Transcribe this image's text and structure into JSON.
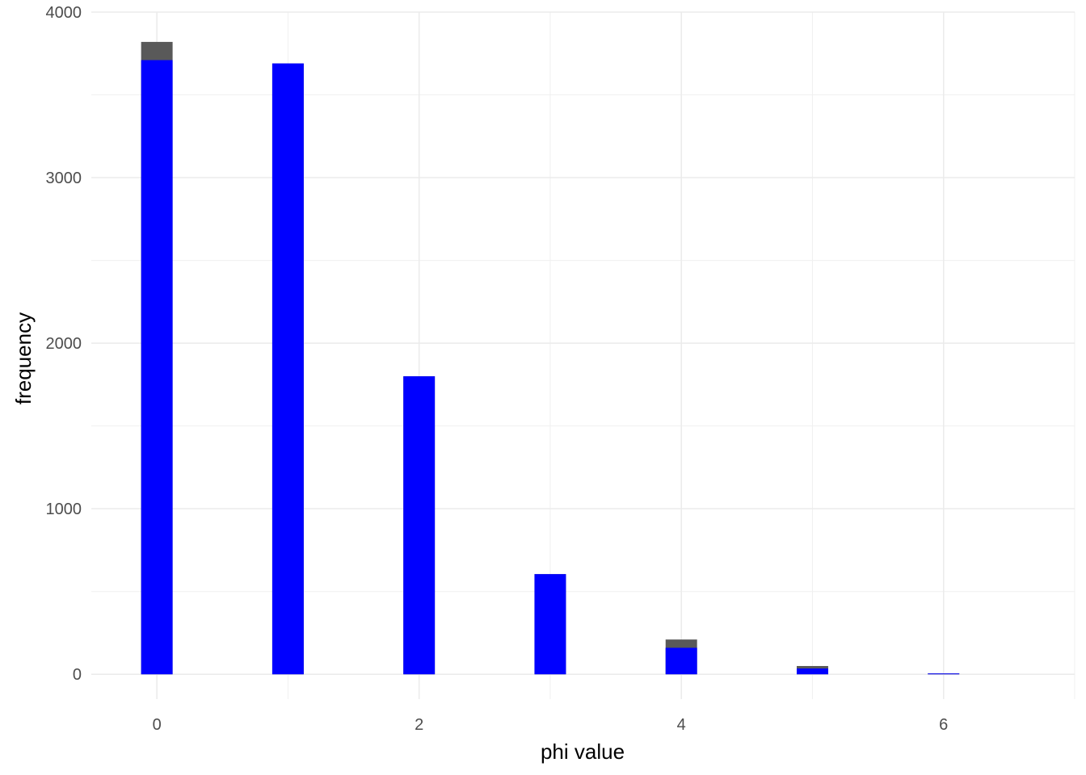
{
  "chart_data": {
    "type": "bar",
    "title": "",
    "xlabel": "phi value",
    "ylabel": "frequency",
    "xlim": [
      -0.5,
      7.0
    ],
    "ylim": [
      -150,
      4000
    ],
    "x_ticks": [
      0,
      2,
      4,
      6
    ],
    "y_ticks": [
      0,
      1000,
      2000,
      3000,
      4000
    ],
    "grid": true,
    "legend": "none",
    "bar_width": 0.24,
    "categories": [
      0,
      1,
      2,
      3,
      4,
      5,
      6
    ],
    "series": [
      {
        "values": [
          3820,
          3690,
          1800,
          605,
          210,
          50,
          5
        ],
        "color": "#595959"
      },
      {
        "values": [
          3710,
          3690,
          1800,
          605,
          160,
          35,
          3
        ],
        "color": "#0000ff"
      }
    ]
  }
}
